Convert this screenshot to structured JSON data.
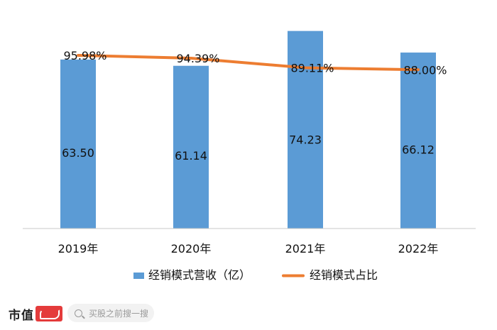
{
  "chart_data": {
    "type": "bar+line",
    "categories": [
      "2019年",
      "2020年",
      "2021年",
      "2022年"
    ],
    "series": [
      {
        "name": "经销模式营收（亿）",
        "type": "bar",
        "values": [
          63.5,
          61.14,
          74.23,
          66.12
        ],
        "labels": [
          "63.50",
          "61.14",
          "74.23",
          "66.12"
        ],
        "color": "#5b9bd5"
      },
      {
        "name": "经销模式占比",
        "type": "line",
        "values": [
          95.98,
          94.39,
          89.11,
          88.0
        ],
        "labels": [
          "95.98%",
          "94.39%",
          "89.11%",
          "88.00%"
        ],
        "color": "#ed7d31"
      }
    ],
    "y_bar_range": [
      0,
      80
    ],
    "y_line_range": [
      0,
      118
    ],
    "grid": false,
    "legend": "bottom"
  },
  "footer": {
    "brand": "市值",
    "search_placeholder": "买股之前搜一搜"
  },
  "colors": {
    "axis": "#c8c8c8",
    "text": "#111111"
  }
}
